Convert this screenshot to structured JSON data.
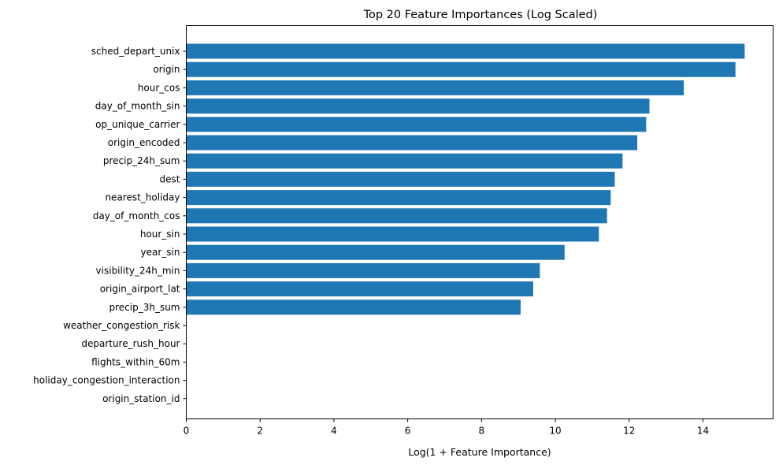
{
  "chart_data": {
    "type": "bar",
    "orientation": "horizontal",
    "title": "Top 20 Feature Importances (Log Scaled)",
    "xlabel": "Log(1 + Feature Importance)",
    "ylabel": "",
    "xlim": [
      0,
      15.9
    ],
    "xticks": [
      0,
      2,
      4,
      6,
      8,
      10,
      12,
      14
    ],
    "grid": false,
    "bar_color": "#1f77b4",
    "categories": [
      "sched_depart_unix",
      "origin",
      "hour_cos",
      "day_of_month_sin",
      "op_unique_carrier",
      "origin_encoded",
      "precip_24h_sum",
      "dest",
      "nearest_holiday",
      "day_of_month_cos",
      "hour_sin",
      "year_sin",
      "visibility_24h_min",
      "origin_airport_lat",
      "precip_3h_sum",
      "weather_congestion_risk",
      "departure_rush_hour",
      "flights_within_60m",
      "holiday_congestion_interaction",
      "origin_station_id"
    ],
    "values": [
      15.13,
      14.88,
      13.48,
      12.55,
      12.46,
      12.22,
      11.82,
      11.61,
      11.5,
      11.4,
      11.18,
      10.25,
      9.58,
      9.4,
      9.06,
      0,
      0,
      0,
      0,
      0
    ]
  }
}
